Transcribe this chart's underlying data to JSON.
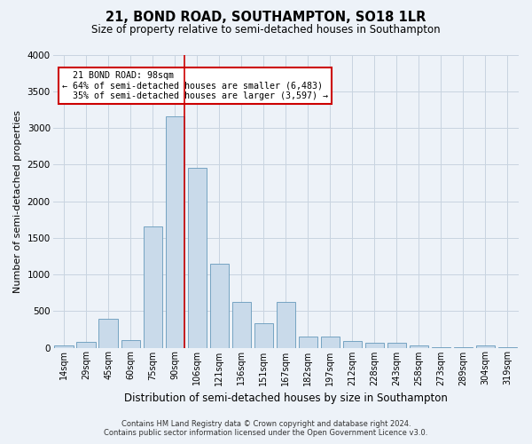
{
  "title": "21, BOND ROAD, SOUTHAMPTON, SO18 1LR",
  "subtitle": "Size of property relative to semi-detached houses in Southampton",
  "xlabel": "Distribution of semi-detached houses by size in Southampton",
  "ylabel": "Number of semi-detached properties",
  "footer_line1": "Contains HM Land Registry data © Crown copyright and database right 2024.",
  "footer_line2": "Contains public sector information licensed under the Open Government Licence v3.0.",
  "annotation_title": "21 BOND ROAD: 98sqm",
  "annotation_line1": "← 64% of semi-detached houses are smaller (6,483)",
  "annotation_line2": "35% of semi-detached houses are larger (3,597) →",
  "bar_color": "#c9daea",
  "bar_edge_color": "#6699bb",
  "marker_line_color": "#cc0000",
  "annotation_box_edge": "#cc0000",
  "annotation_box_fill": "#ffffff",
  "grid_color": "#c8d4e0",
  "background_color": "#edf2f8",
  "categories": [
    "14sqm",
    "29sqm",
    "45sqm",
    "60sqm",
    "75sqm",
    "90sqm",
    "106sqm",
    "121sqm",
    "136sqm",
    "151sqm",
    "167sqm",
    "182sqm",
    "197sqm",
    "212sqm",
    "228sqm",
    "243sqm",
    "258sqm",
    "273sqm",
    "289sqm",
    "304sqm",
    "319sqm"
  ],
  "values": [
    30,
    75,
    390,
    100,
    1660,
    3155,
    2450,
    1150,
    625,
    330,
    625,
    155,
    155,
    95,
    65,
    65,
    35,
    10,
    10,
    35,
    10
  ],
  "ylim": [
    0,
    4000
  ],
  "yticks": [
    0,
    500,
    1000,
    1500,
    2000,
    2500,
    3000,
    3500,
    4000
  ],
  "vline_x": 5.425
}
